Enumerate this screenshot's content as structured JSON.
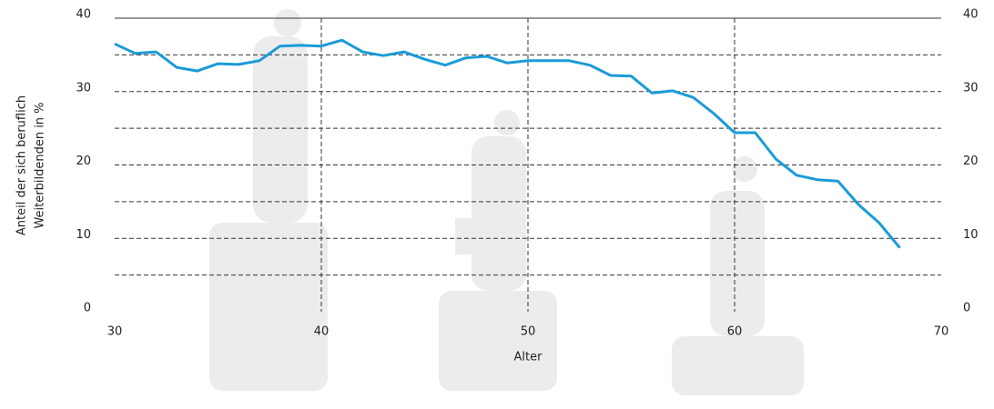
{
  "chart_data": {
    "type": "line",
    "x_label": "Alter",
    "y_label": [
      "Anteil der sich beruflich",
      "Weiterbildenden in %"
    ],
    "x": [
      30,
      31,
      32,
      33,
      34,
      35,
      36,
      37,
      38,
      39,
      40,
      41,
      42,
      43,
      44,
      45,
      46,
      47,
      48,
      49,
      50,
      51,
      52,
      53,
      54,
      55,
      56,
      57,
      58,
      59,
      60,
      61,
      62,
      63,
      64,
      65,
      66,
      67,
      68
    ],
    "series": [
      {
        "color": "#1a9bd7",
        "values": [
          36.5,
          35.2,
          35.4,
          33.3,
          32.8,
          33.8,
          33.7,
          34.2,
          36.2,
          36.3,
          36.2,
          37.0,
          35.4,
          34.9,
          35.4,
          34.4,
          33.6,
          34.6,
          34.8,
          33.9,
          34.2,
          34.2,
          34.2,
          33.6,
          32.2,
          32.1,
          29.8,
          30.1,
          29.2,
          27.0,
          24.4,
          24.4,
          20.8,
          18.6,
          18.0,
          17.8,
          14.6,
          12.1,
          8.7
        ]
      }
    ],
    "xlim": [
      30,
      70
    ],
    "xticks": [
      30,
      40,
      50,
      60,
      70
    ],
    "ylim": [
      0,
      40
    ],
    "yticks": [
      0,
      10,
      20,
      30,
      40
    ],
    "minor_yticks": [
      5,
      15,
      25,
      35
    ],
    "y2lim": [
      0,
      40
    ],
    "y2ticks": [
      0,
      10,
      20,
      30,
      40
    ],
    "grid": true
  }
}
